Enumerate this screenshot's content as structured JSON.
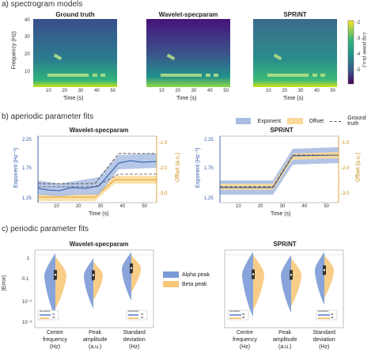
{
  "sections": {
    "a": "a) spectrogram models",
    "b": "b) aperiodic parameter fits",
    "c": "c) periodic parameter fits"
  },
  "spectrogram": {
    "panels": [
      "Ground truth",
      "Wavelet-specparam",
      "SPRiNT"
    ],
    "ylabel": "Frequency (Hz)",
    "xlabel": "Time (s)",
    "yticks": [
      "40",
      "30",
      "20",
      "10"
    ],
    "xticks": [
      "10",
      "20",
      "30",
      "40",
      "50"
    ],
    "colorbar": {
      "label": "Log power (a.u.)",
      "ticks": [
        "-2",
        "-3",
        "-4",
        "-5"
      ],
      "colors": [
        "#fde725",
        "#35b779",
        "#21918c",
        "#3b528b",
        "#440154"
      ]
    }
  },
  "aperiodic": {
    "legend": [
      "Exponent",
      "Offset",
      "Ground truth"
    ],
    "panels": [
      "Wavelet-specparam",
      "SPRiNT"
    ],
    "left_ticks": [
      "2.25",
      "1.75",
      "1.25"
    ],
    "left_label": "Exponent (Hz⁻¹)",
    "right_ticks": [
      "-1.0",
      "-2.0",
      "-3.0"
    ],
    "right_label": "Offset (a.u.)",
    "xlabel": "Time (s)",
    "xticks": [
      "10",
      "20",
      "30",
      "40",
      "50"
    ],
    "colors": {
      "exponent": "#3f6eb5",
      "offset": "#f0b429",
      "truth": "#555555"
    }
  },
  "periodic": {
    "panels": [
      "Wavelet-specparam",
      "SPRiNT"
    ],
    "ylabel": "|Error|",
    "yticks": [
      "1",
      "0.1",
      "10⁻²",
      "10⁻³"
    ],
    "categories": [
      "Centre frequency (Hz)",
      "Peak amplitude (a.u.)",
      "Standard deviation (Hz)"
    ],
    "cat_lines": [
      [
        "Centre",
        "frequency",
        "(Hz)"
      ],
      [
        "Peak",
        "amplitude",
        "(a.u.)"
      ],
      [
        "Standard",
        "deviation",
        "(Hz)"
      ]
    ],
    "legend": [
      "Alpha peak",
      "Beta peak"
    ],
    "colors": {
      "alpha": "#7b9ad6",
      "beta": "#f7c87a"
    },
    "insets": {
      "wavelet": {
        "sensitivity_label": "Sensitivity",
        "sensitivity": [
          "93",
          "80"
        ],
        "specificity_label": "Specificity",
        "specificity": [
          "91",
          "90"
        ]
      },
      "sprint": {
        "sensitivity_label": "Sensitivity",
        "sensitivity": [
          "98",
          "98"
        ],
        "specificity_label": "Specificity",
        "specificity": [
          "98",
          "98"
        ]
      }
    }
  }
}
